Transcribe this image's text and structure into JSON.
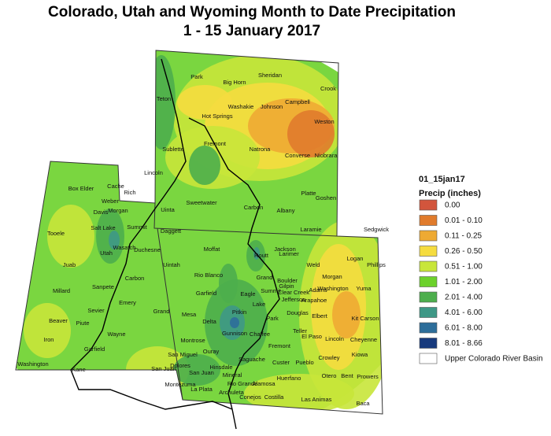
{
  "title": [
    "Colorado, Utah and Wyoming Month to Date Precipitation",
    "1 - 15 January 2017"
  ],
  "legend": {
    "title": "01_15jan17",
    "subtitle": "Precip (inches)",
    "items": [
      {
        "label": "0.00",
        "color": "#d2553c"
      },
      {
        "label": "0.01 - 0.10",
        "color": "#e07b2c"
      },
      {
        "label": "0.11 - 0.25",
        "color": "#eeaa33"
      },
      {
        "label": "0.26 - 0.50",
        "color": "#f5dc3f"
      },
      {
        "label": "0.51 - 1.00",
        "color": "#c8e63a"
      },
      {
        "label": "1.01 - 2.00",
        "color": "#6cd12b"
      },
      {
        "label": "2.01 - 4.00",
        "color": "#4dae4d"
      },
      {
        "label": "4.01 - 6.00",
        "color": "#3e9886"
      },
      {
        "label": "6.01 - 8.00",
        "color": "#2d6e9a"
      },
      {
        "label": "8.01 - 8.66",
        "color": "#173a7d"
      },
      {
        "label": "Upper Colorado River Basin",
        "color": "#ffffff"
      }
    ]
  },
  "labels": [
    "Park",
    "Big Horn",
    "Sheridan",
    "Crook",
    "Teton",
    "Washakie",
    "Johnson",
    "Campbell",
    "Hot Springs",
    "Weston",
    "Fremont",
    "Natrona",
    "Sublette",
    "Converse",
    "Niobrara",
    "Lincoln",
    "Platte",
    "Goshen",
    "Sweetwater",
    "Carbon",
    "Albany",
    "Laramie",
    "Uinta",
    "Box Elder",
    "Cache",
    "Rich",
    "Weber",
    "Davis",
    "Morgan",
    "Tooele",
    "Salt Lake",
    "Summit",
    "Daggett",
    "Wasatch",
    "Duchesne",
    "Utah",
    "Juab",
    "Uintah",
    "Carbon",
    "Sanpete",
    "Millard",
    "Emery",
    "Sevier",
    "Grand",
    "Beaver",
    "Piute",
    "Wayne",
    "Iron",
    "Garfield",
    "Washington",
    "Kane",
    "San Juan",
    "Moffat",
    "Routt",
    "Jackson",
    "Larimer",
    "Logan",
    "Sedgwick",
    "Phillips",
    "Rio Blanco",
    "Grand",
    "Weld",
    "Morgan",
    "Boulder",
    "Garfield",
    "Eagle",
    "Summit",
    "Gilpin",
    "Clear Creek",
    "Jefferson",
    "Adams",
    "Arapahoe",
    "Washington",
    "Yuma",
    "Lake",
    "Douglas",
    "Elbert",
    "Kit Carson",
    "Mesa",
    "Pitkin",
    "Park",
    "Delta",
    "Gunnison",
    "Chaffee",
    "Teller",
    "El Paso",
    "Lincoln",
    "Cheyenne",
    "Montrose",
    "Fremont",
    "Ouray",
    "San Miguel",
    "Hinsdale",
    "Saguache",
    "Custer",
    "Pueblo",
    "Crowley",
    "Kiowa",
    "Dolores",
    "San Juan",
    "Mineral",
    "Rio Grande",
    "Alamosa",
    "Huerfano",
    "Otero",
    "Bent",
    "Prowers",
    "Montezuma",
    "La Plata",
    "Archuleta",
    "Conejos",
    "Costilla",
    "Las Animas",
    "Baca"
  ]
}
